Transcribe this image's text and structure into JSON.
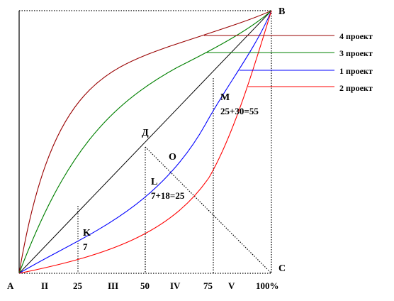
{
  "points": {
    "A": "А",
    "B": "B",
    "C": "C",
    "D": "Д",
    "O": "O",
    "K": "K",
    "L": "L",
    "M": "M"
  },
  "values": {
    "K": "7",
    "L": "7+18=25",
    "M": "25+30=55"
  },
  "x_axis_labels": [
    "А",
    "II",
    "25",
    "III",
    "50",
    "IV",
    "75",
    "V",
    "100%"
  ],
  "legend": [
    {
      "label": "4 проект",
      "color": "#990000"
    },
    {
      "label": "3 проект",
      "color": "#008000"
    },
    {
      "label": "1 проект",
      "color": "#0000ff"
    },
    {
      "label": "2 проект",
      "color": "#ff0000"
    }
  ]
}
